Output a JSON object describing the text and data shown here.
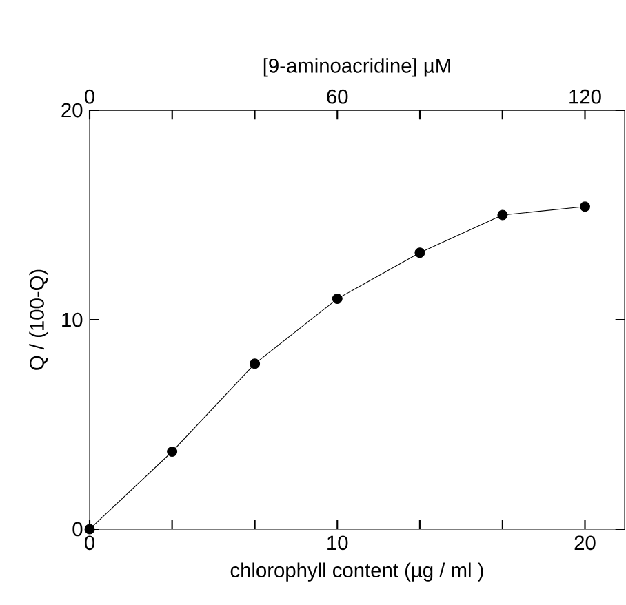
{
  "chart_data": {
    "type": "line",
    "xlabel": "chlorophyll content  (µg / ml )",
    "ylabel": "Q / (100-Q)",
    "x2label": "[9-aminoacridine]   µM",
    "x": [
      0,
      3.33,
      6.67,
      10,
      13.33,
      16.67,
      20
    ],
    "series": [
      {
        "color": "#000000",
        "values": [
          0,
          3.7,
          7.9,
          11.0,
          13.2,
          15.0,
          15.4
        ]
      }
    ],
    "xlim": [
      0,
      21.6
    ],
    "xticks": [
      0,
      {
        "value": 3.33,
        "label": null
      },
      {
        "value": 6.67,
        "label": null
      },
      10,
      {
        "value": 13.33,
        "label": null
      },
      {
        "value": 16.67,
        "label": null
      },
      20
    ],
    "x2lim": [
      0,
      129.6
    ],
    "x2ticks": [
      0,
      {
        "value": 20,
        "label": null
      },
      {
        "value": 40,
        "label": null
      },
      60,
      {
        "value": 80,
        "label": null
      },
      {
        "value": 100,
        "label": null
      },
      120
    ],
    "ylim": [
      0,
      20
    ],
    "yticks": [
      0,
      10,
      20
    ],
    "marker": "circle",
    "line_style": "solid"
  }
}
